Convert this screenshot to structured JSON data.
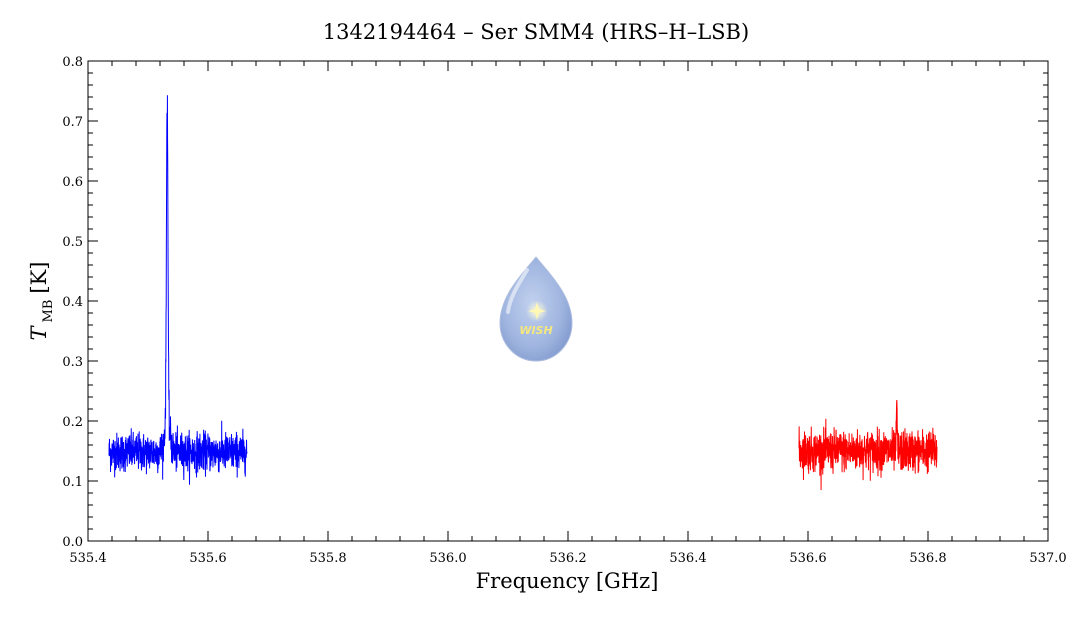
{
  "chart_data": {
    "type": "line",
    "title": "1342194464 – Ser SMM4 (HRS–H–LSB)",
    "xlabel": "Frequency [GHz]",
    "ylabel_main": "T",
    "ylabel_sub": "MB",
    "ylabel_unit": "[K]",
    "xlim": [
      535.4,
      537.0
    ],
    "ylim": [
      0.0,
      0.8
    ],
    "xticks": [
      "535.4",
      "535.6",
      "535.8",
      "536.0",
      "536.2",
      "536.4",
      "536.6",
      "536.8",
      "537.0"
    ],
    "yticks": [
      "0.0",
      "0.1",
      "0.2",
      "0.3",
      "0.4",
      "0.5",
      "0.6",
      "0.7",
      "0.8"
    ],
    "grid": false,
    "series": [
      {
        "color": "#0000ff",
        "x_range": [
          535.435,
          535.665
        ],
        "baseline": 0.148,
        "noise": 0.016,
        "peak": {
          "x": 535.532,
          "y": 0.7
        }
      },
      {
        "color": "#ff0000",
        "x_range": [
          536.585,
          536.815
        ],
        "baseline": 0.15,
        "noise": 0.017,
        "peak": {
          "x": 536.748,
          "y": 0.235
        }
      }
    ],
    "logo_text": "WISH"
  }
}
